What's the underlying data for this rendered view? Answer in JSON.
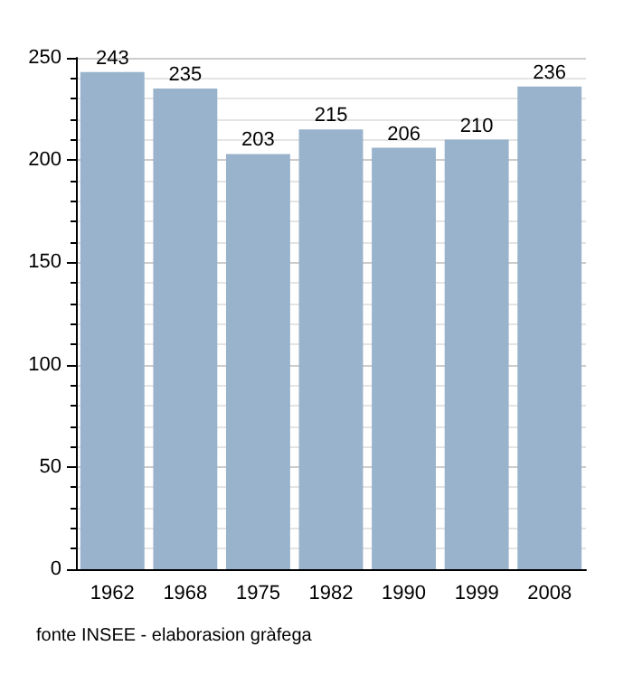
{
  "chart_data": {
    "type": "bar",
    "categories": [
      "1962",
      "1968",
      "1975",
      "1982",
      "1990",
      "1999",
      "2008"
    ],
    "values": [
      243,
      235,
      203,
      215,
      206,
      210,
      236
    ],
    "color": "#99b3cc",
    "data_labels": true,
    "ylim": [
      0,
      250
    ],
    "yticks": [
      0,
      50,
      100,
      150,
      200,
      250
    ],
    "grid": "y",
    "annotations": [
      "fonte INSEE - elaborasion gràfega"
    ]
  }
}
